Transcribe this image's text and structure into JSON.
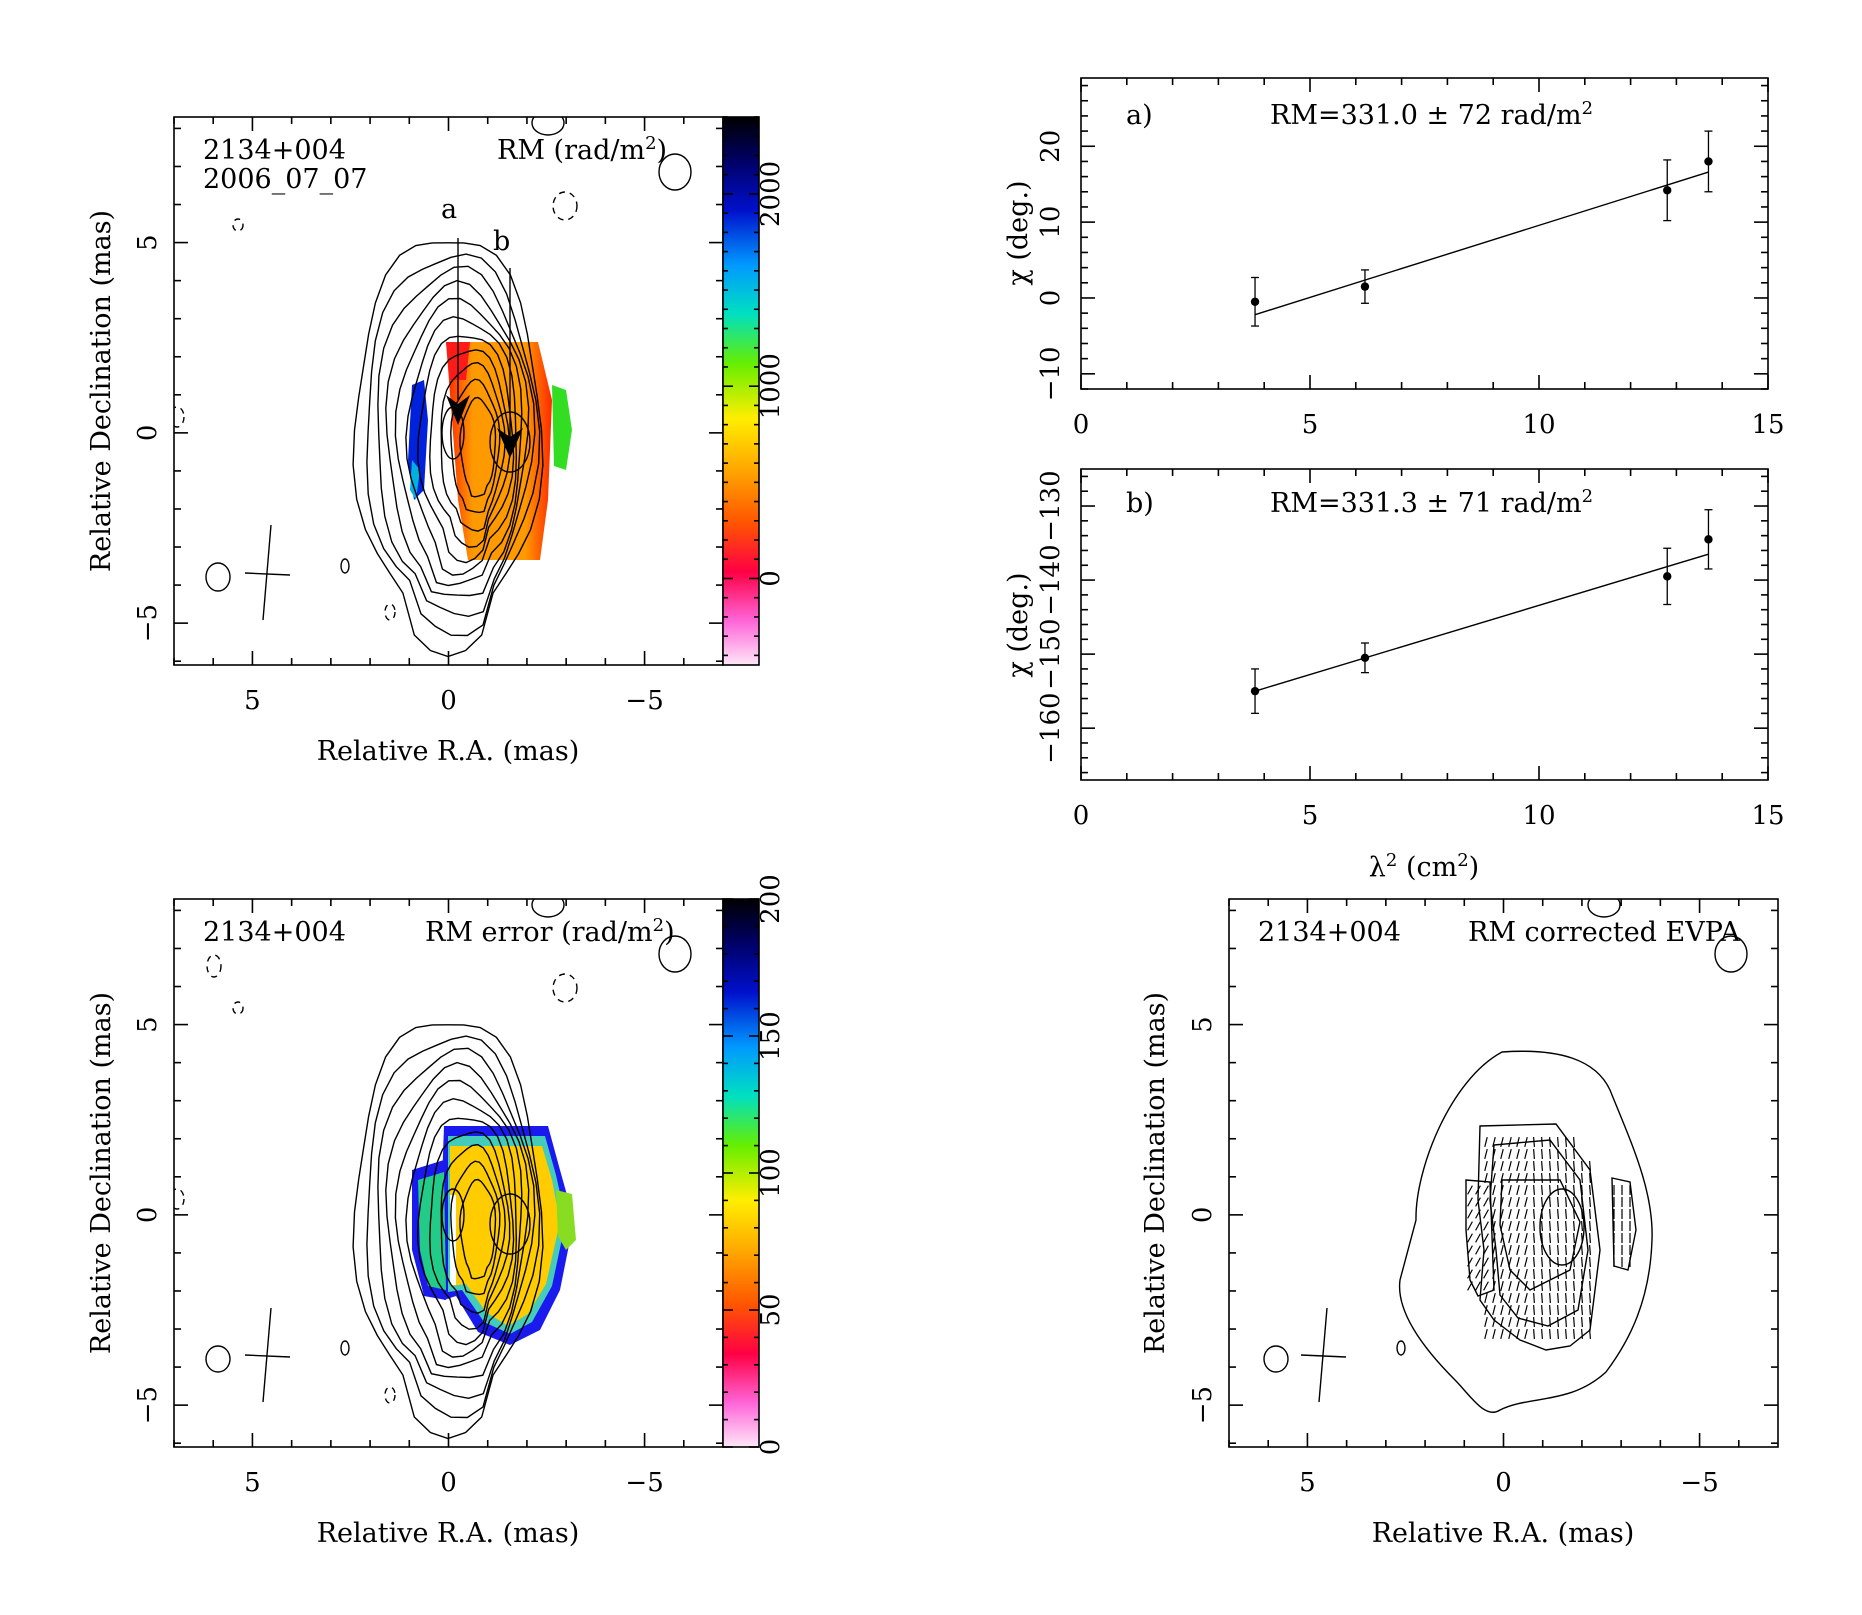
{
  "panels": {
    "rm_map": {
      "source": "2134+004",
      "epoch": "2006_07_07",
      "map_label": "RM (rad/m",
      "map_label_unit_sup": "2",
      "map_label_close": ")",
      "marker_a": "a",
      "marker_b": "b",
      "xlabel": "Relative R.A. (mas)",
      "ylabel": "Relative Declination (mas)",
      "x_ticks": [
        "5",
        "0",
        "−5"
      ],
      "y_ticks": [
        "5",
        "0",
        "−5"
      ],
      "colorbar_ticks": [
        "0",
        "1000",
        "2000"
      ]
    },
    "rm_error_map": {
      "source": "2134+004",
      "map_label": "RM error (rad/m",
      "map_label_unit_sup": "2",
      "map_label_close": ")",
      "xlabel": "Relative R.A. (mas)",
      "ylabel": "Relative Declination (mas)",
      "x_ticks": [
        "5",
        "0",
        "−5"
      ],
      "y_ticks": [
        "5",
        "0",
        "−5"
      ],
      "colorbar_ticks": [
        "0",
        "50",
        "100",
        "150",
        "200"
      ]
    },
    "evpa_map": {
      "source": "2134+004",
      "map_label": "RM corrected EVPA",
      "xlabel": "Relative R.A. (mas)",
      "ylabel": "Relative Declination (mas)",
      "x_ticks": [
        "5",
        "0",
        "−5"
      ],
      "y_ticks": [
        "5",
        "0",
        "−5"
      ]
    }
  },
  "chart_data": [
    {
      "type": "scatter",
      "panel": "a)",
      "annotation": "RM=331.0 ± 72 rad/m",
      "annotation_sup": "2",
      "x": [
        3.8,
        6.2,
        12.8,
        13.7
      ],
      "y": [
        -0.5,
        1.5,
        14.2,
        18.0
      ],
      "yerr": [
        3.2,
        2.2,
        4.0,
        4.0
      ],
      "fit_line": {
        "x": [
          3.8,
          13.7
        ],
        "y": [
          -2.2,
          16.6
        ]
      },
      "xlim": [
        0,
        15
      ],
      "ylim": [
        -12,
        29
      ],
      "x_ticks": [
        "0",
        "5",
        "10",
        "15"
      ],
      "y_ticks": [
        "−10",
        "0",
        "10",
        "20"
      ],
      "ylabel": "χ (deg.)"
    },
    {
      "type": "scatter",
      "panel": "b)",
      "annotation": "RM=331.3 ± 71 rad/m",
      "annotation_sup": "2",
      "x": [
        3.8,
        6.2,
        12.8,
        13.7
      ],
      "y": [
        -155.0,
        -150.5,
        -139.5,
        -134.5
      ],
      "yerr": [
        3.0,
        2.0,
        3.8,
        4.0
      ],
      "fit_line": {
        "x": [
          3.8,
          13.7
        ],
        "y": [
          -155.0,
          -136.5
        ]
      },
      "xlim": [
        0,
        15
      ],
      "ylim": [
        -167,
        -125
      ],
      "x_ticks": [
        "0",
        "5",
        "10",
        "15"
      ],
      "y_ticks": [
        "−160",
        "−150",
        "−140",
        "−130"
      ],
      "ylabel": "χ (deg.)",
      "xlabel": "λ",
      "xlabel_sup": "2",
      "xlabel_unit": " (cm",
      "xlabel_unit_sup": "2",
      "xlabel_close": ")"
    }
  ],
  "colors": {
    "ink": "#000000",
    "colormap": [
      "#ffd9f4",
      "#ff33cc",
      "#ff0000",
      "#ff8800",
      "#ffcc00",
      "#b8f000",
      "#00ee66",
      "#00e0e0",
      "#1e90ff",
      "#0000cc",
      "#000000"
    ]
  }
}
